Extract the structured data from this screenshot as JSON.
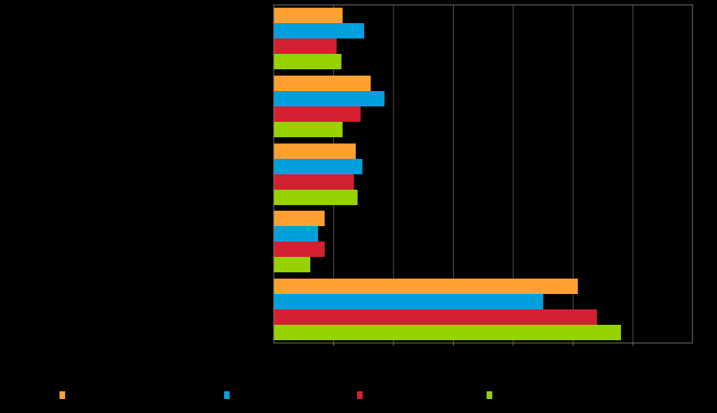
{
  "chart_data": {
    "type": "bar",
    "orientation": "horizontal",
    "categories": [
      "",
      "",
      "",
      "",
      ""
    ],
    "series": [
      {
        "name": "",
        "color": "#ffa030",
        "values": [
          1.15,
          1.62,
          1.37,
          0.85,
          5.08
        ]
      },
      {
        "name": "",
        "color": "#00a0dc",
        "values": [
          1.51,
          1.85,
          1.48,
          0.74,
          4.5
        ]
      },
      {
        "name": "",
        "color": "#d42030",
        "values": [
          1.05,
          1.45,
          1.34,
          0.85,
          5.4
        ]
      },
      {
        "name": "",
        "color": "#96d200",
        "values": [
          1.13,
          1.15,
          1.4,
          0.61,
          5.8
        ]
      }
    ],
    "xlim": [
      0,
      7
    ],
    "xticks": [
      0,
      1,
      2,
      3,
      4,
      5,
      6,
      7
    ],
    "grid": true,
    "legend_position": "bottom",
    "title": "",
    "xlabel": "",
    "ylabel": ""
  },
  "colors": {
    "background": "#000000",
    "axis": "#7f7f7f",
    "grid": "#5a5a5a"
  }
}
